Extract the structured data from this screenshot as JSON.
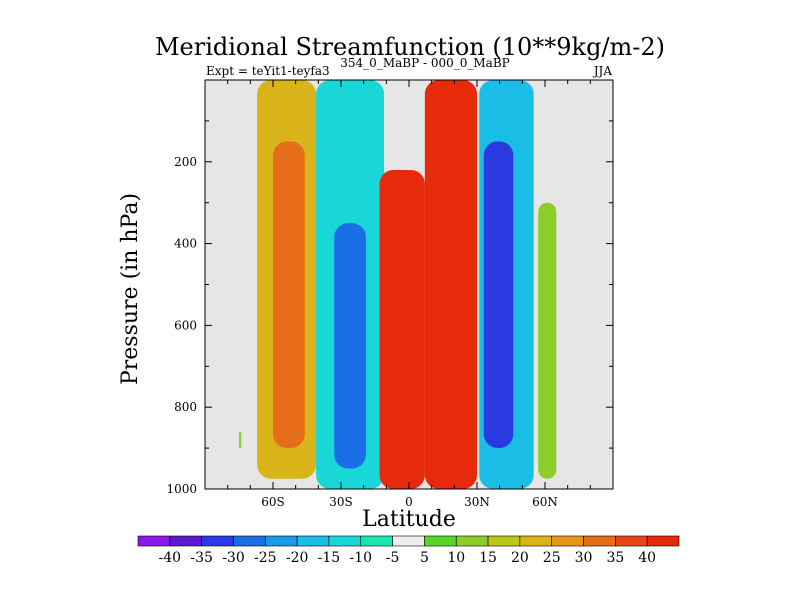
{
  "chart_data": {
    "type": "heatmap",
    "title": "Meridional Streamfunction (10**9kg/m-2)",
    "subtitle_left": "Expt = teYit1-teyfa3",
    "subtitle_center": "354_0_MaBP - 000_0_MaBP",
    "subtitle_right": "JJA",
    "xlabel": "Latitude",
    "ylabel": "Pressure (in hPa)",
    "x_range": [
      -90,
      90
    ],
    "y_range": [
      0,
      1000
    ],
    "x_ticks": [
      {
        "value": -60,
        "label": "60S"
      },
      {
        "value": -30,
        "label": "30S"
      },
      {
        "value": 0,
        "label": "0"
      },
      {
        "value": 30,
        "label": "30N"
      },
      {
        "value": 60,
        "label": "60N"
      }
    ],
    "y_ticks": [
      {
        "value": 200,
        "label": "200"
      },
      {
        "value": 400,
        "label": "400"
      },
      {
        "value": 600,
        "label": "600"
      },
      {
        "value": 800,
        "label": "800"
      },
      {
        "value": 1000,
        "label": "1000"
      }
    ],
    "missing_color": "#e6e6e6",
    "levels": [
      -40,
      -35,
      -30,
      -25,
      -20,
      -15,
      -10,
      -5,
      5,
      10,
      15,
      20,
      25,
      30,
      35,
      40
    ],
    "colorbar_labels": [
      "-40",
      "-35",
      "-30",
      "-25",
      "-20",
      "-15",
      "-10",
      "-5",
      "5",
      "10",
      "15",
      "20",
      "25",
      "30",
      "35",
      "40"
    ],
    "colors": [
      "#8b1ae6",
      "#5a1acb",
      "#2a3ae0",
      "#1a6ee6",
      "#1a9ae6",
      "#1abde6",
      "#1ad7d7",
      "#1ae6b0",
      "#eeeeee",
      "#5ad62a",
      "#8ccd2a",
      "#b9c81a",
      "#d9b41a",
      "#e6961a",
      "#e66e1a",
      "#e6461a",
      "#e62a0a"
    ],
    "features": [
      {
        "name": "sh-subpolar-positive",
        "lat": [
          -67,
          -41
        ],
        "p": [
          0,
          975
        ],
        "value": 22
      },
      {
        "name": "sh-subpolar-core",
        "lat": [
          -60,
          -46
        ],
        "p": [
          150,
          900
        ],
        "value": 32
      },
      {
        "name": "sh-midlat-negative",
        "lat": [
          -41,
          -11
        ],
        "p": [
          0,
          1000
        ],
        "value": -12
      },
      {
        "name": "sh-midlat-core",
        "lat": [
          -33,
          -19
        ],
        "p": [
          350,
          950
        ],
        "value": -28
      },
      {
        "name": "sh-tropical-cell",
        "lat": [
          -13,
          7
        ],
        "p": [
          220,
          1000
        ],
        "value": 40
      },
      {
        "name": "nh-tropical-cell",
        "lat": [
          7,
          30
        ],
        "p": [
          0,
          1000
        ],
        "value": 40
      },
      {
        "name": "nh-midlat-negative",
        "lat": [
          31,
          55
        ],
        "p": [
          0,
          1000
        ],
        "value": -20
      },
      {
        "name": "nh-midlat-core",
        "lat": [
          33,
          46
        ],
        "p": [
          150,
          900
        ],
        "value": -33
      },
      {
        "name": "nh-subpolar-positive",
        "lat": [
          57,
          65
        ],
        "p": [
          300,
          975
        ],
        "value": 10
      },
      {
        "name": "sh-polar-speck",
        "lat": [
          -75,
          -74
        ],
        "p": [
          860,
          900
        ],
        "value": 10
      }
    ]
  }
}
